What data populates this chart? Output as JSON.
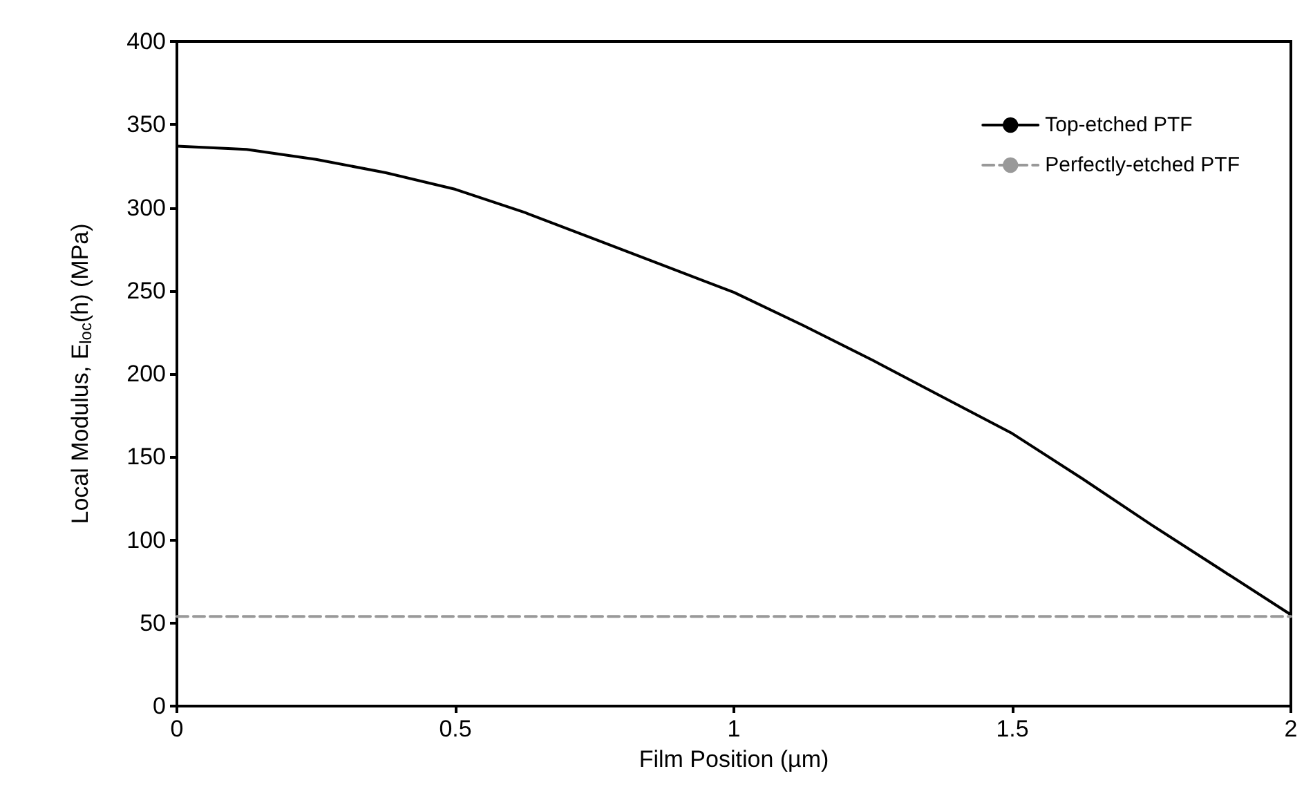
{
  "chart_data": {
    "type": "line",
    "xlabel": "Film Position (µm)",
    "ylabel": "Local Modulus, E$_{loc}$(h) (MPa)",
    "xlim": [
      0,
      2
    ],
    "xticks": [
      0,
      0.5,
      1,
      1.5,
      2
    ],
    "ylim": [
      0,
      400
    ],
    "yticks": [
      0,
      50,
      100,
      150,
      200,
      250,
      300,
      350,
      400
    ],
    "grid": false,
    "legend": "top right",
    "marker": "none",
    "series": [
      {
        "name": "Top-etched PTF",
        "color": "#000000",
        "line_style": "solid",
        "x": [
          0,
          0.125,
          0.25,
          0.375,
          0.5,
          0.625,
          0.75,
          0.875,
          1,
          1.125,
          1.25,
          1.375,
          1.5,
          1.625,
          1.75,
          1.875,
          2
        ],
        "values": [
          337,
          335,
          329,
          321,
          311,
          297,
          281,
          265,
          249,
          229,
          208,
          186,
          164,
          137,
          109,
          82,
          55
        ]
      },
      {
        "name": "Perfectly-etched PTF",
        "color": "#999999",
        "line_style": "dashed",
        "x": [
          0,
          2
        ],
        "values": [
          54,
          54
        ]
      }
    ]
  }
}
